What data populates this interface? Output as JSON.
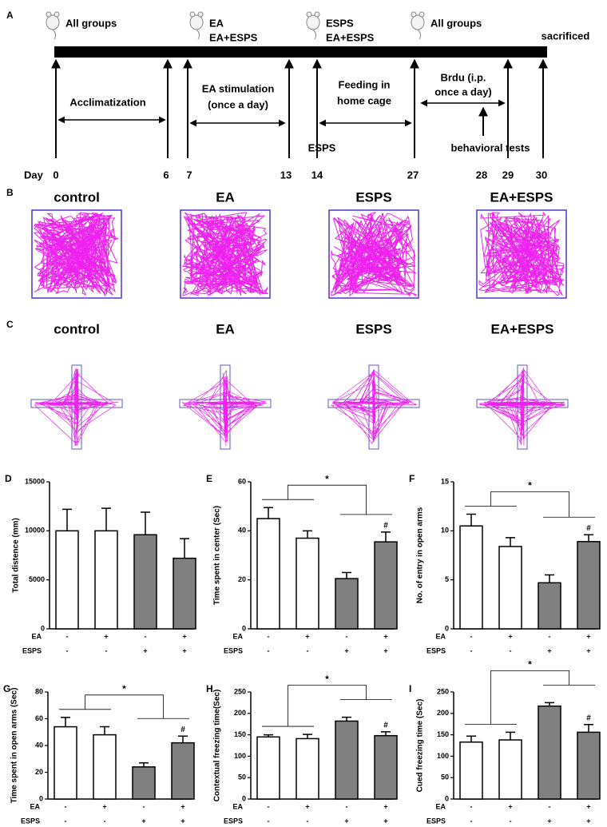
{
  "timeline": {
    "panel": "A",
    "groups": [
      [
        "All groups"
      ],
      [
        "EA",
        "EA+ESPS"
      ],
      [
        "ESPS",
        "EA+ESPS"
      ],
      [
        "All groups"
      ]
    ],
    "day_label": "Day",
    "days": [
      0,
      6,
      7,
      13,
      14,
      27,
      28,
      29,
      30
    ],
    "phases": [
      [
        "Acclimatization"
      ],
      [
        "EA stimulation",
        "(once a day)"
      ],
      [
        "Feeding in",
        "home cage"
      ],
      [
        "Brdu (i.p.",
        "once a day)"
      ]
    ],
    "events": [
      "ESPS",
      "behavioral tests",
      "sacrificed"
    ]
  },
  "open_field": {
    "panel": "B",
    "groups": [
      "control",
      "EA",
      "ESPS",
      "EA+ESPS"
    ]
  },
  "plus_maze": {
    "panel": "C",
    "groups": [
      "control",
      "EA",
      "ESPS",
      "EA+ESPS"
    ]
  },
  "chart_data": [
    {
      "type": "bar",
      "panel": "D",
      "ylabel": "Total distence (mm)",
      "values": [
        10000,
        10000,
        9600,
        7200
      ],
      "errors": [
        2200,
        2300,
        2300,
        2000
      ],
      "colors": [
        "#ffffff",
        "#ffffff",
        "#808080",
        "#808080"
      ],
      "ylim": [
        0,
        15000
      ],
      "yticks": [
        0,
        5000,
        10000,
        15000
      ],
      "factors": [
        {
          "name": "EA",
          "levels": [
            "-",
            "+",
            "-",
            "+"
          ]
        },
        {
          "name": "ESPS",
          "levels": [
            "-",
            "-",
            "+",
            "+"
          ]
        }
      ]
    },
    {
      "type": "bar",
      "panel": "E",
      "ylabel": "Time  spent in center (Sec)",
      "values": [
        45,
        37,
        20.5,
        35.5
      ],
      "errors": [
        4.5,
        3,
        2.5,
        4
      ],
      "colors": [
        "#ffffff",
        "#ffffff",
        "#808080",
        "#808080"
      ],
      "ylim": [
        0,
        60
      ],
      "yticks": [
        0,
        20,
        40,
        60
      ],
      "factors": [
        {
          "name": "EA",
          "levels": [
            "-",
            "+",
            "-",
            "+"
          ]
        },
        {
          "name": "ESPS",
          "levels": [
            "-",
            "-",
            "+",
            "+"
          ]
        }
      ],
      "significance": "*",
      "markers": [
        null,
        null,
        null,
        "#"
      ]
    },
    {
      "type": "bar",
      "panel": "F",
      "ylabel": "No. of entry  in open arms",
      "values": [
        10.5,
        8.4,
        4.7,
        8.9
      ],
      "errors": [
        1.2,
        0.9,
        0.8,
        0.7
      ],
      "colors": [
        "#ffffff",
        "#ffffff",
        "#808080",
        "#808080"
      ],
      "ylim": [
        0,
        15
      ],
      "yticks": [
        0,
        5,
        10,
        15
      ],
      "factors": [
        {
          "name": "EA",
          "levels": [
            "-",
            "+",
            "-",
            "+"
          ]
        },
        {
          "name": "ESPS",
          "levels": [
            "-",
            "-",
            "+",
            "+"
          ]
        }
      ],
      "significance": "*",
      "markers": [
        null,
        null,
        null,
        "#"
      ]
    },
    {
      "type": "bar",
      "panel": "G",
      "ylabel": "Time spent in open arms (Sec)",
      "values": [
        54,
        48,
        24,
        42
      ],
      "errors": [
        7,
        6,
        3,
        5
      ],
      "colors": [
        "#ffffff",
        "#ffffff",
        "#808080",
        "#808080"
      ],
      "ylim": [
        0,
        80
      ],
      "yticks": [
        0,
        20,
        40,
        60,
        80
      ],
      "factors": [
        {
          "name": "EA",
          "levels": [
            "-",
            "+",
            "-",
            "+"
          ]
        },
        {
          "name": "ESPS",
          "levels": [
            "-",
            "-",
            "+",
            "+"
          ]
        }
      ],
      "significance": "*",
      "markers": [
        null,
        null,
        null,
        "#"
      ]
    },
    {
      "type": "bar",
      "panel": "H",
      "ylabel": "Contextual freezing time(Sec)",
      "values": [
        145,
        141,
        182,
        148
      ],
      "errors": [
        5,
        10,
        9,
        9
      ],
      "colors": [
        "#ffffff",
        "#ffffff",
        "#808080",
        "#808080"
      ],
      "ylim": [
        0,
        250
      ],
      "yticks": [
        0,
        50,
        100,
        150,
        200,
        250
      ],
      "factors": [
        {
          "name": "EA",
          "levels": [
            "-",
            "+",
            "-",
            "+"
          ]
        },
        {
          "name": "ESPS",
          "levels": [
            "-",
            "-",
            "+",
            "+"
          ]
        }
      ],
      "significance": "*",
      "markers": [
        null,
        null,
        null,
        "#"
      ]
    },
    {
      "type": "bar",
      "panel": "I",
      "ylabel": "Cued freezing time (Sec)",
      "values": [
        133,
        138,
        217,
        156
      ],
      "errors": [
        14,
        18,
        8,
        18
      ],
      "colors": [
        "#ffffff",
        "#ffffff",
        "#808080",
        "#808080"
      ],
      "ylim": [
        0,
        250
      ],
      "yticks": [
        0,
        50,
        100,
        150,
        200,
        250
      ],
      "factors": [
        {
          "name": "EA",
          "levels": [
            "-",
            "+",
            "-",
            "+"
          ]
        },
        {
          "name": "ESPS",
          "levels": [
            "-",
            "-",
            "+",
            "+"
          ]
        }
      ],
      "significance": "*",
      "markers": [
        null,
        null,
        null,
        "#"
      ]
    }
  ]
}
